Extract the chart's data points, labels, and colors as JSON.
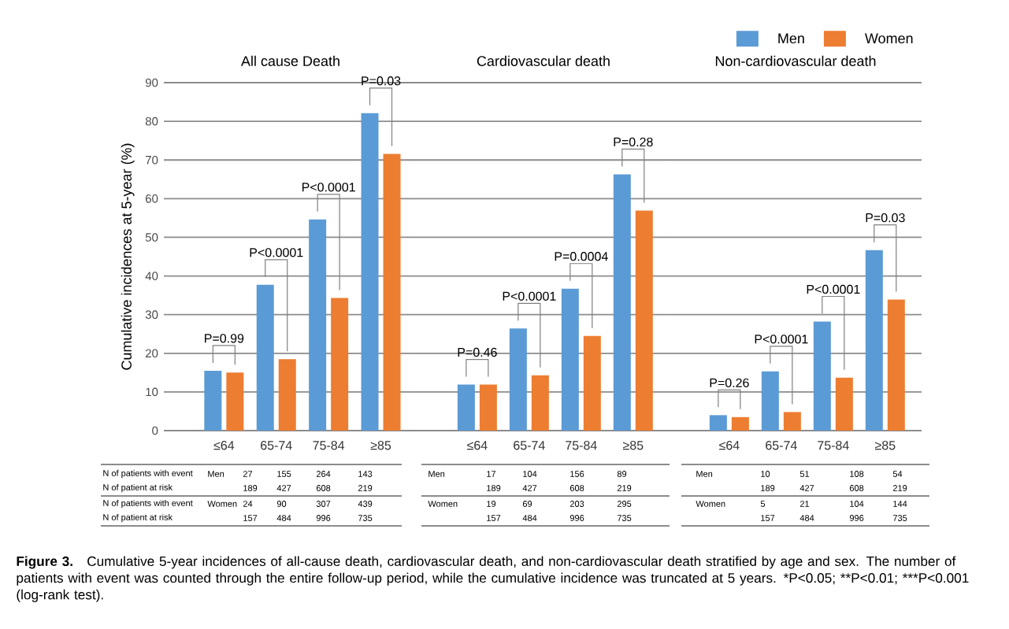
{
  "chart_data": [
    {
      "type": "bar",
      "title": "All cause Death",
      "ylabel": "Cumulative incidences at 5-year (%)",
      "categories": [
        "≤64",
        "65-74",
        "75-84",
        "≥85"
      ],
      "series": [
        {
          "color": "#5b9bd5",
          "values": [
            15.5,
            37.7,
            54.6,
            82.1
          ]
        },
        {
          "color": "#ed7d31",
          "values": [
            15.0,
            18.5,
            34.3,
            71.6
          ]
        }
      ],
      "ylim": [
        0,
        90
      ],
      "yticks": [
        0,
        10,
        20,
        30,
        40,
        50,
        60,
        70,
        80,
        90
      ],
      "grid": "y",
      "annotations": [
        "P=0.99",
        "P<0.0001",
        "P<0.0001",
        "P=0.03",
        "N of patients with event",
        "Men",
        "27",
        "155",
        "264",
        "143",
        "N of patient at risk",
        "189",
        "427",
        "608",
        "219",
        "N of patients with event",
        "Women",
        "24",
        "90",
        "307",
        "439",
        "N of patient at risk",
        "157",
        "484",
        "996",
        "735"
      ]
    },
    {
      "type": "bar",
      "title": "Cardiovascular death",
      "categories": [
        "≤64",
        "65-74",
        "75-84",
        "≥85"
      ],
      "series": [
        {
          "color": "#5b9bd5",
          "values": [
            11.9,
            26.4,
            36.7,
            66.3
          ]
        },
        {
          "color": "#ed7d31",
          "values": [
            11.9,
            14.3,
            24.5,
            56.9
          ]
        }
      ],
      "ylim": [
        0,
        90
      ],
      "yticks": [
        0,
        10,
        20,
        30,
        40,
        50,
        60,
        70,
        80,
        90
      ],
      "grid": "y",
      "tick_labels": "x",
      "annotations": [
        "P=0.46",
        "P<0.0001",
        "P=0.0004",
        "P=0.28",
        "Men",
        "17",
        "104",
        "156",
        "89",
        "189",
        "427",
        "608",
        "219",
        "Women",
        "19",
        "69",
        "203",
        "295",
        "157",
        "484",
        "996",
        "735"
      ]
    },
    {
      "type": "bar",
      "title": "Non-cardiovascular death",
      "categories": [
        "≤64",
        "65-74",
        "75-84",
        "≥85"
      ],
      "series": [
        {
          "name": "Men",
          "color": "#5b9bd5",
          "values": [
            4.0,
            15.3,
            28.2,
            46.7
          ]
        },
        {
          "name": "Women",
          "color": "#ed7d31",
          "values": [
            3.5,
            4.8,
            13.7,
            33.9
          ]
        }
      ],
      "ylim": [
        0,
        90
      ],
      "yticks": [
        0,
        10,
        20,
        30,
        40,
        50,
        60,
        70,
        80,
        90
      ],
      "grid": "y",
      "tick_labels": "x",
      "legend": "top right",
      "annotations": [
        "P=0.26",
        "P<0.0001",
        "P<0.0001",
        "P=0.03",
        "Men",
        "10",
        "51",
        "108",
        "54",
        "189",
        "427",
        "608",
        "219",
        "Women",
        "5",
        "21",
        "104",
        "144",
        "157",
        "484",
        "996",
        "735",
        "Figure 3.",
        "Cumulative 5-year incidences of all-cause death, cardiovascular death, and non-cardiovascular death stratified by age and sex. The number of patients with event was counted through the entire follow-up period, while the cumulative incidence was truncated at 5 years.",
        "*P<0.05;",
        "**P<0.01;",
        "***P<0.001 (log-rank test)."
      ]
    }
  ]
}
